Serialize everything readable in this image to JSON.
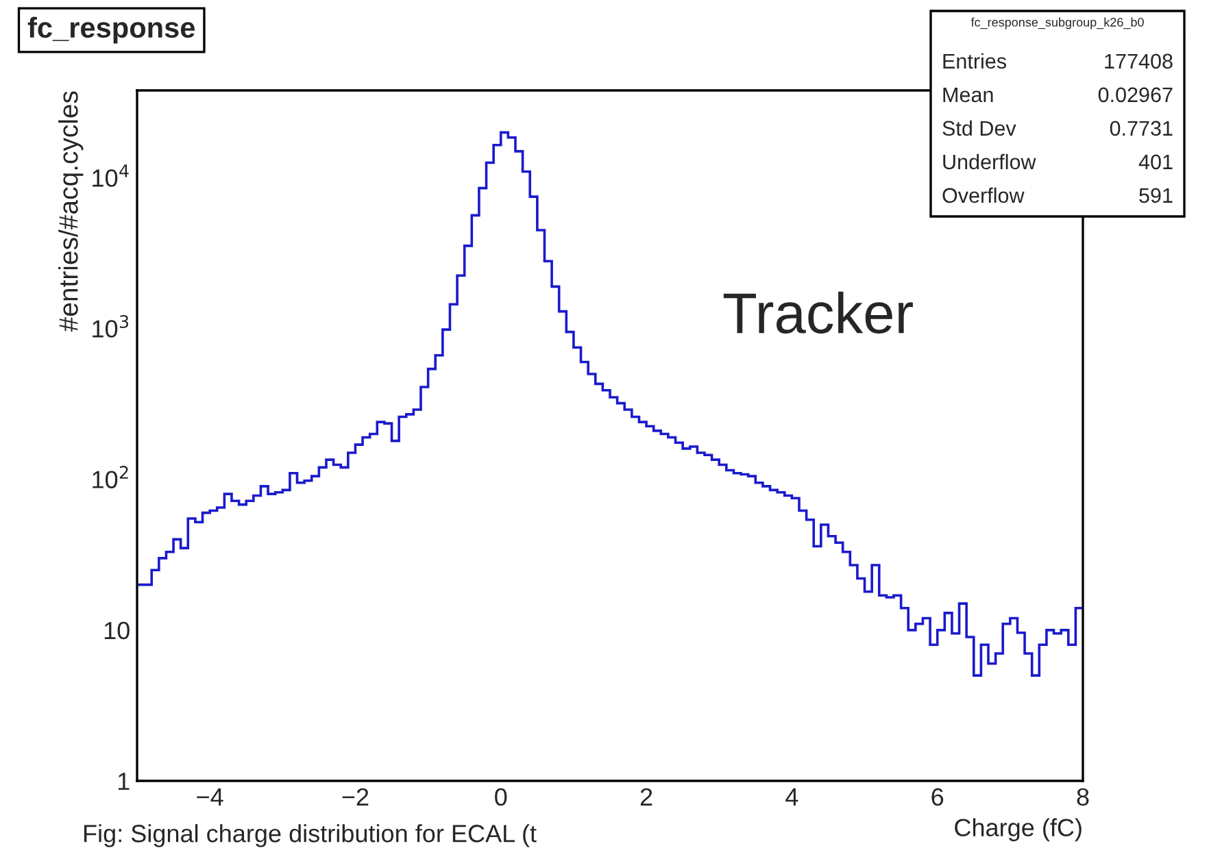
{
  "chart_data": {
    "type": "histogram",
    "title": "fc_response",
    "xlabel": "Charge (fC)",
    "ylabel": "#entries/#acq.cycles",
    "bins": [
      -5.0,
      -4.9,
      -4.8,
      -4.7,
      -4.6,
      -4.5,
      -4.4,
      -4.3,
      -4.2,
      -4.1,
      -4.0,
      -3.9,
      -3.8,
      -3.7,
      -3.6,
      -3.5,
      -3.4,
      -3.3,
      -3.2,
      -3.1,
      -3.0,
      -2.9,
      -2.8,
      -2.7,
      -2.6,
      -2.5,
      -2.4,
      -2.3,
      -2.2,
      -2.1,
      -2.0,
      -1.9,
      -1.8,
      -1.7,
      -1.6,
      -1.5,
      -1.4,
      -1.3,
      -1.2,
      -1.1,
      -1.0,
      -0.9,
      -0.8,
      -0.7,
      -0.6,
      -0.5,
      -0.4,
      -0.3,
      -0.2,
      -0.1,
      0.0,
      0.1,
      0.2,
      0.3,
      0.4,
      0.5,
      0.6,
      0.7,
      0.8,
      0.9,
      1.0,
      1.1,
      1.2,
      1.3,
      1.4,
      1.5,
      1.6,
      1.7,
      1.8,
      1.9,
      2.0,
      2.1,
      2.2,
      2.3,
      2.4,
      2.5,
      2.6,
      2.7,
      2.8,
      2.9,
      3.0,
      3.1,
      3.2,
      3.3,
      3.4,
      3.5,
      3.6,
      3.7,
      3.8,
      3.9,
      4.0,
      4.1,
      4.2,
      4.3,
      4.4,
      4.5,
      4.6,
      4.7,
      4.8,
      4.9,
      5.0,
      5.1,
      5.2,
      5.3,
      5.4,
      5.5,
      5.6,
      5.7,
      5.8,
      5.9,
      6.0,
      6.1,
      6.2,
      6.3,
      6.4,
      6.5,
      6.6,
      6.7,
      6.8,
      6.9,
      7.0,
      7.1,
      7.2,
      7.3,
      7.4,
      7.5,
      7.6,
      7.7,
      7.8,
      7.9,
      8.0
    ],
    "values": [
      20,
      20,
      25,
      30,
      33,
      40,
      35,
      55,
      52,
      60,
      62,
      65,
      80,
      72,
      68,
      72,
      78,
      90,
      80,
      82,
      85,
      110,
      95,
      98,
      105,
      120,
      135,
      125,
      120,
      150,
      170,
      190,
      200,
      240,
      235,
      180,
      260,
      270,
      290,
      410,
      540,
      665,
      985,
      1450,
      2250,
      3540,
      5640,
      8550,
      12600,
      16500,
      20000,
      18500,
      15000,
      11000,
      7500,
      4500,
      2800,
      1900,
      1300,
      950,
      750,
      600,
      500,
      430,
      390,
      350,
      320,
      290,
      260,
      240,
      225,
      210,
      200,
      190,
      175,
      160,
      165,
      150,
      145,
      135,
      125,
      115,
      110,
      108,
      105,
      95,
      90,
      85,
      82,
      78,
      75,
      62,
      54,
      36,
      50,
      42,
      38,
      33,
      27,
      22,
      18,
      27,
      17,
      16.5,
      17,
      14,
      10,
      11,
      12,
      8,
      10,
      13,
      9.5,
      15,
      9,
      5,
      8,
      6,
      7,
      11,
      12,
      9.6,
      7,
      5,
      8,
      10,
      9.5,
      10,
      8,
      14
    ],
    "color": "#1a1acc",
    "log": "y",
    "xlim": [
      -5,
      8
    ],
    "ylim": [
      1,
      38000
    ],
    "xticks": [
      {
        "value": -4,
        "label": "−4"
      },
      {
        "value": -2,
        "label": "−2"
      },
      0,
      2,
      4,
      6,
      8
    ],
    "yticks": [
      1,
      10,
      {
        "value": 100,
        "label": "10$^{2}$"
      },
      {
        "value": 1000,
        "label": "10$^{3}$"
      },
      {
        "value": 10000,
        "label": "10$^{4}$"
      }
    ],
    "grid": false,
    "annotations": [
      "fc_response_subgroup_k26_b0",
      "Entries",
      "177408",
      "Mean",
      "0.02967",
      "Std Dev",
      "0.7731",
      "Underflow",
      "401",
      "Overflow",
      "591",
      "Tracker",
      "Fig: Signal charge distribution for ECAL (t"
    ]
  }
}
